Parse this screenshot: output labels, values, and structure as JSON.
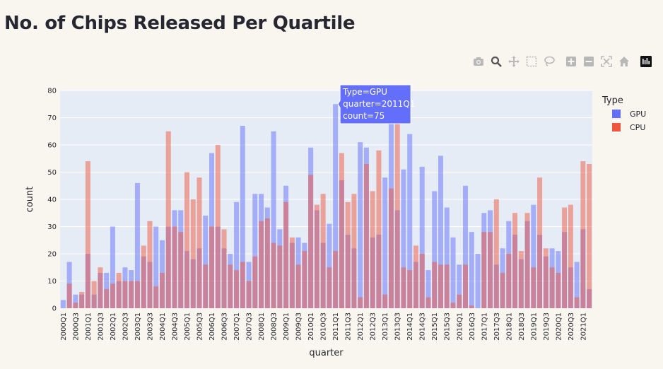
{
  "page": {
    "title": "No. of Chips Released Per Quartile"
  },
  "modebar": {
    "buttons": [
      {
        "name": "camera-icon",
        "active": false
      },
      {
        "name": "zoom-icon",
        "active": true
      },
      {
        "name": "pan-icon",
        "active": false
      },
      {
        "name": "box-select-icon",
        "active": false
      },
      {
        "name": "lasso-select-icon",
        "active": false
      },
      {
        "name": "zoom-in-icon",
        "active": false
      },
      {
        "name": "zoom-out-icon",
        "active": false
      },
      {
        "name": "autoscale-icon",
        "active": false
      },
      {
        "name": "reset-axes-icon",
        "active": false
      },
      {
        "name": "plotly-logo-icon",
        "active": false
      }
    ]
  },
  "colors": {
    "gpu": "#636efa",
    "cpu": "#ef553b",
    "plot_bg": "#e5ecf6",
    "page_bg": "#f9f6f0"
  },
  "chart_data": {
    "type": "bar",
    "barmode": "overlay",
    "title": "No. of Chips Released Per Quartile",
    "xlabel": "quarter",
    "ylabel": "count",
    "ylim": [
      0,
      80
    ],
    "yticks": [
      0,
      10,
      20,
      30,
      40,
      50,
      60,
      70,
      80
    ],
    "grid": true,
    "legend": {
      "title": "Type",
      "position": "top-right"
    },
    "categories": [
      "2000Q1",
      "2000Q2",
      "2000Q3",
      "2000Q4",
      "2001Q1",
      "2001Q2",
      "2001Q3",
      "2001Q4",
      "2002Q1",
      "2002Q2",
      "2002Q3",
      "2002Q4",
      "2003Q1",
      "2003Q2",
      "2003Q3",
      "2003Q4",
      "2004Q1",
      "2004Q2",
      "2004Q3",
      "2004Q4",
      "2005Q1",
      "2005Q2",
      "2005Q3",
      "2005Q4",
      "2006Q1",
      "2006Q2",
      "2006Q3",
      "2006Q4",
      "2007Q1",
      "2007Q2",
      "2007Q3",
      "2007Q4",
      "2008Q1",
      "2008Q2",
      "2008Q3",
      "2008Q4",
      "2009Q1",
      "2009Q2",
      "2009Q3",
      "2009Q4",
      "2010Q1",
      "2010Q2",
      "2010Q3",
      "2010Q4",
      "2011Q1",
      "2011Q2",
      "2011Q3",
      "2011Q4",
      "2012Q1",
      "2012Q2",
      "2012Q3",
      "2012Q4",
      "2013Q1",
      "2013Q2",
      "2013Q3",
      "2013Q4",
      "2014Q1",
      "2014Q2",
      "2014Q3",
      "2014Q4",
      "2015Q1",
      "2015Q2",
      "2015Q3",
      "2015Q4",
      "2016Q1",
      "2016Q2",
      "2016Q3",
      "2016Q4",
      "2017Q1",
      "2017Q2",
      "2017Q3",
      "2017Q4",
      "2018Q1",
      "2018Q2",
      "2018Q3",
      "2018Q4",
      "2019Q1",
      "2019Q2",
      "2019Q3",
      "2019Q4",
      "2020Q1",
      "2020Q2",
      "2020Q3",
      "2020Q4",
      "2021Q1",
      "2021Q2"
    ],
    "series": [
      {
        "name": "GPU",
        "values": [
          3,
          17,
          5,
          5,
          20,
          5,
          13,
          13,
          30,
          10,
          15,
          14,
          46,
          19,
          17,
          30,
          25,
          30,
          36,
          36,
          21,
          18,
          22,
          34,
          57,
          30,
          22,
          20,
          39,
          67,
          17,
          42,
          42,
          37,
          65,
          29,
          45,
          24,
          26,
          24,
          59,
          36,
          24,
          31,
          75,
          47,
          27,
          22,
          61,
          59,
          26,
          27,
          48,
          68,
          36,
          51,
          64,
          17,
          52,
          14,
          43,
          56,
          37,
          26,
          16,
          45,
          28,
          20,
          35,
          36,
          16,
          22,
          32,
          27,
          18,
          32,
          38,
          27,
          19,
          22,
          21,
          28,
          15,
          17,
          29,
          7
        ]
      },
      {
        "name": "CPU",
        "values": [
          0,
          9,
          2,
          6,
          54,
          10,
          15,
          7,
          9,
          13,
          10,
          10,
          10,
          23,
          32,
          8,
          13,
          65,
          30,
          28,
          50,
          40,
          48,
          16,
          30,
          60,
          29,
          16,
          14,
          17,
          10,
          19,
          32,
          33,
          24,
          23,
          39,
          26,
          16,
          21,
          49,
          38,
          42,
          15,
          21,
          57,
          39,
          42,
          4,
          53,
          43,
          58,
          5,
          44,
          68,
          15,
          14,
          23,
          20,
          4,
          17,
          16,
          16,
          2,
          5,
          16,
          1,
          0,
          28,
          28,
          40,
          13,
          20,
          35,
          21,
          35,
          15,
          48,
          22,
          15,
          13,
          37,
          38,
          4,
          54,
          53
        ]
      }
    ],
    "tooltip": {
      "type_line": "Type=GPU",
      "quarter_line": "quarter=2011Q1",
      "count_line": "count=75"
    }
  }
}
